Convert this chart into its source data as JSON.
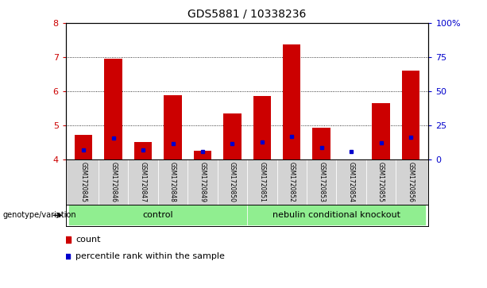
{
  "title": "GDS5881 / 10338236",
  "samples": [
    "GSM1720845",
    "GSM1720846",
    "GSM1720847",
    "GSM1720848",
    "GSM1720849",
    "GSM1720850",
    "GSM1720851",
    "GSM1720852",
    "GSM1720853",
    "GSM1720854",
    "GSM1720855",
    "GSM1720856"
  ],
  "bar_values": [
    4.72,
    6.95,
    4.52,
    5.9,
    4.27,
    5.35,
    5.87,
    7.38,
    4.95,
    4.02,
    5.65,
    6.62
  ],
  "blue_values": [
    4.29,
    4.63,
    4.3,
    4.47,
    4.25,
    4.47,
    4.52,
    4.68,
    4.37,
    4.24,
    4.49,
    4.66
  ],
  "bar_bottom": 4.0,
  "ylim": [
    4.0,
    8.0
  ],
  "yticks_left": [
    4,
    5,
    6,
    7,
    8
  ],
  "yticks_right": [
    0,
    25,
    50,
    75,
    100
  ],
  "bar_color": "#cc0000",
  "blue_color": "#0000cc",
  "bar_width": 0.6,
  "groups": [
    {
      "label": "control",
      "indices": [
        0,
        1,
        2,
        3,
        4,
        5
      ],
      "color": "#90ee90"
    },
    {
      "label": "nebulin conditional knockout",
      "indices": [
        6,
        7,
        8,
        9,
        10,
        11
      ],
      "color": "#90ee90"
    }
  ],
  "group_label_text": "genotype/variation",
  "xlabel_color": "#cc0000",
  "right_axis_color": "#0000cc",
  "legend_count": "count",
  "legend_pct": "percentile rank within the sample",
  "tick_area_color": "#d3d3d3",
  "grid_color": "#000000",
  "title_fontsize": 10
}
